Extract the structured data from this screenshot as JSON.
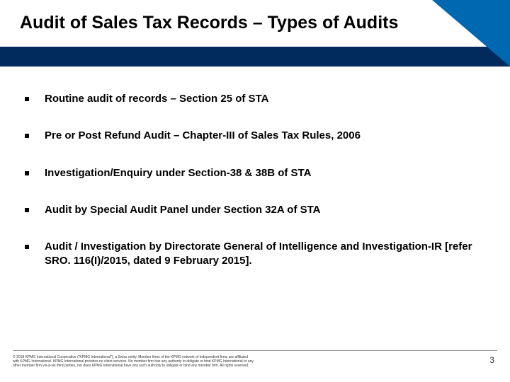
{
  "title": "Audit of Sales Tax Records – Types of Audits",
  "items": [
    "Routine audit of records – Section 25 of STA",
    "Pre or Post Refund Audit – Chapter-III of Sales Tax Rules, 2006",
    "Investigation/Enquiry under Section-38 & 38B of STA",
    "Audit by Special Audit Panel under Section 32A of STA",
    "Audit / Investigation by Directorate General of Intelligence and Investigation-IR [refer SRO. 116(I)/2015, dated 9 February 2015]."
  ],
  "copyright": "© 2018 KPMG International Cooperative (\"KPMG International\"), a Swiss entity. Member firms of the KPMG network of independent firms are affiliated with KPMG International. KPMG International provides no client services. No member firm has any authority to obligate or bind KPMG International or any other member firm vis-à-vis third parties, nor does KPMG International have any such authority to obligate or bind any member firm. All rights reserved.",
  "pageNumber": "3",
  "colors": {
    "darkBlue": "#002b5c",
    "accentBlue": "#0067b1",
    "white": "#ffffff",
    "black": "#000000",
    "grayLine": "#999999"
  }
}
